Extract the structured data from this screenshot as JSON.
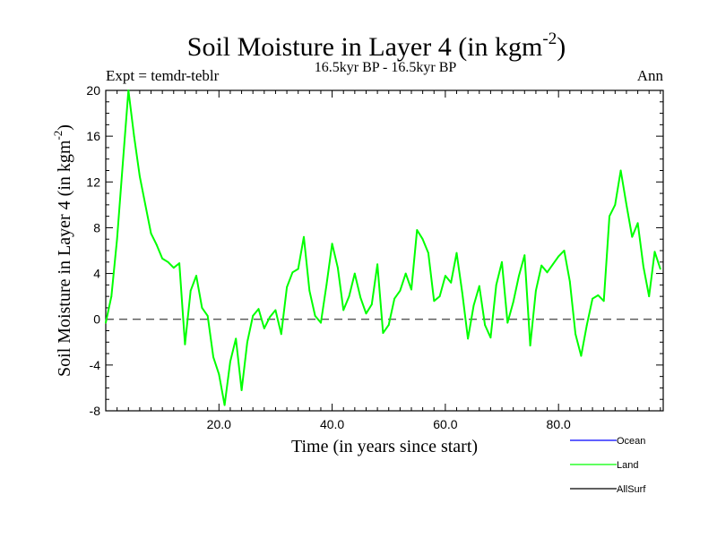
{
  "chart_data": {
    "type": "line",
    "title": "Soil Moisture in Layer 4 (in kgm",
    "title_sup": "-2",
    "title_end": ")",
    "subtitle": "16.5kyr BP - 16.5kyr BP",
    "left_label": "Expt = temdr-teblr",
    "right_label": "Ann",
    "xlabel": "Time (in years since start)",
    "ylabel": "Soil Moisture in Layer 4 (in kgm",
    "ylabel_sup": "-2",
    "ylabel_end": ")",
    "xlim": [
      0,
      98.5
    ],
    "ylim": [
      -8,
      20
    ],
    "xticks": [
      20,
      40,
      60,
      80
    ],
    "xtick_labels": [
      "20.0",
      "40.0",
      "60.0",
      "80.0"
    ],
    "yticks": [
      -8,
      -4,
      0,
      4,
      8,
      12,
      16,
      20
    ],
    "ytick_labels": [
      "-8",
      "-4",
      "0",
      "4",
      "8",
      "12",
      "16",
      "20"
    ],
    "zero_line": 0,
    "series": [
      {
        "name": "Ocean",
        "color": "#0000ff",
        "values": []
      },
      {
        "name": "Land",
        "color": "#00ff00",
        "x": [
          0,
          1,
          2,
          3,
          4,
          5,
          6,
          7,
          8,
          9,
          10,
          11,
          12,
          13,
          14,
          15,
          16,
          17,
          18,
          19,
          20,
          21,
          22,
          23,
          24,
          25,
          26,
          27,
          28,
          29,
          30,
          31,
          32,
          33,
          34,
          35,
          36,
          37,
          38,
          39,
          40,
          41,
          42,
          43,
          44,
          45,
          46,
          47,
          48,
          49,
          50,
          51,
          52,
          53,
          54,
          55,
          56,
          57,
          58,
          59,
          60,
          61,
          62,
          63,
          64,
          65,
          66,
          67,
          68,
          69,
          70,
          71,
          72,
          73,
          74,
          75,
          76,
          77,
          78,
          79,
          80,
          81,
          82,
          83,
          84,
          85,
          86,
          87,
          88,
          89,
          90,
          91,
          92,
          93,
          94,
          95,
          96,
          97,
          98
        ],
        "values": [
          -0.3,
          2.0,
          7.0,
          13.5,
          20.0,
          16.0,
          12.5,
          10.0,
          7.5,
          6.5,
          5.3,
          5.0,
          4.5,
          4.9,
          -2.2,
          2.5,
          3.8,
          1.0,
          0.3,
          -3.3,
          -4.8,
          -7.5,
          -3.7,
          -1.7,
          -6.2,
          -2.0,
          0.3,
          0.9,
          -0.8,
          0.2,
          0.8,
          -1.3,
          2.8,
          4.1,
          4.4,
          7.2,
          2.5,
          0.3,
          -0.3,
          3.0,
          6.6,
          4.5,
          0.8,
          2.0,
          4.0,
          1.9,
          0.5,
          1.3,
          4.8,
          -1.2,
          -0.5,
          1.8,
          2.5,
          4.0,
          2.6,
          7.8,
          7.0,
          5.8,
          1.6,
          2.0,
          3.8,
          3.2,
          5.8,
          2.3,
          -1.7,
          1.2,
          2.9,
          -0.5,
          -1.6,
          3.0,
          5.0,
          -0.3,
          1.5,
          3.8,
          5.6,
          -2.3,
          2.5,
          4.7,
          4.1,
          4.8,
          5.5,
          6.0,
          3.3,
          -1.3,
          -3.2,
          -0.5,
          1.8,
          2.1,
          1.6,
          9.0,
          10.0,
          13.0,
          10.0,
          7.2,
          8.4,
          4.6,
          2.0,
          5.9,
          4.4
        ]
      },
      {
        "name": "AllSurf",
        "color": "#000000",
        "values": []
      }
    ],
    "legend_position": "bottom-right"
  }
}
